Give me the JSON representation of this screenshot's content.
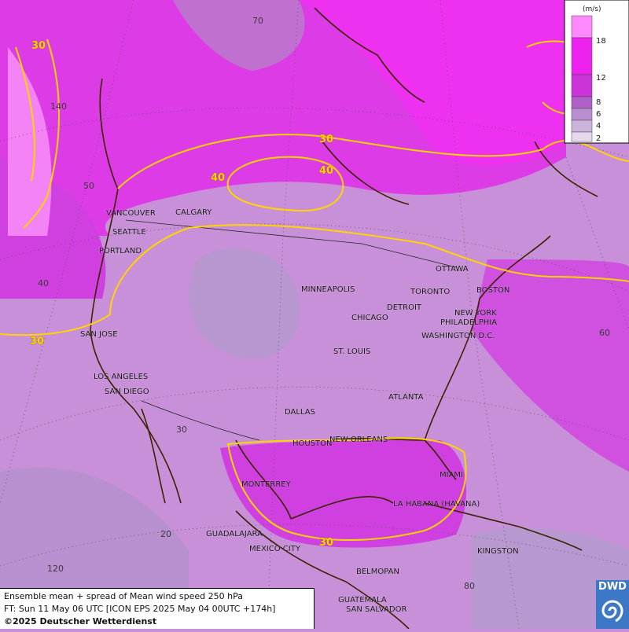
{
  "map": {
    "units": "(m/s)",
    "legend": {
      "ticks": [
        "18",
        "12",
        "8",
        "6",
        "4",
        "2"
      ],
      "colors": [
        "#ff88ff",
        "#ee22ee",
        "#cc33d8",
        "#b060c8",
        "#b890d2",
        "#ccb4dc",
        "#e8d8ee"
      ]
    },
    "contour_labels": [
      "30",
      "30",
      "40",
      "40",
      "30",
      "30"
    ],
    "latitude_labels": [
      "70",
      "50",
      "40",
      "30",
      "20"
    ],
    "longitude_labels": [
      "140",
      "60",
      "120",
      "80"
    ],
    "cities": [
      "VANCOUVER",
      "CALGARY",
      "SEATTLE",
      "PORTLAND",
      "MINNEAPOLIS",
      "OTTAWA",
      "TORONTO",
      "BOSTON",
      "DETROIT",
      "CHICAGO",
      "NEW YORK",
      "PHILADELPHIA",
      "WASHINGTON D.C.",
      "SAN JOSE",
      "ST. LOUIS",
      "LOS ANGELES",
      "SAN DIEGO",
      "ATLANTA",
      "DALLAS",
      "HOUSTON",
      "NEW ORLEANS",
      "MIAMI",
      "MONTERREY",
      "LA HABANA (HAVANA)",
      "GUADALAJARA",
      "MEXICO CITY",
      "KINGSTON",
      "BELMOPAN",
      "GUATEMALA",
      "SAN SALVADOR"
    ]
  },
  "info": {
    "line1": "Ensemble mean + spread of Mean wind speed 250 hPa",
    "line2": "FT: Sun 11 May 06 UTC [ICON EPS 2025 May 04 00UTC +174h]",
    "copyright": "©2025 Deutscher Wetterdienst"
  },
  "logo": {
    "text": "DWD"
  }
}
